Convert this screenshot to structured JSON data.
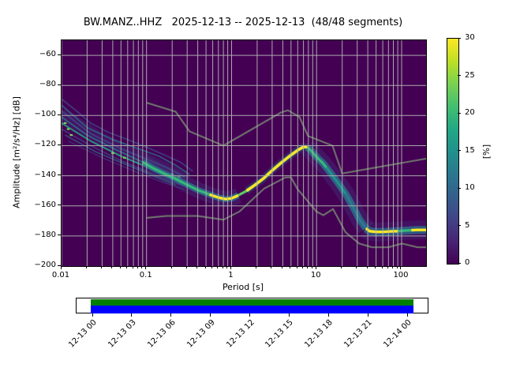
{
  "title": "BW.MANZ..HHZ   2025-12-13 -- 2025-12-13  (48/48 segments)",
  "axes": {
    "xlabel": "Period [s]",
    "ylabel": "Amplitude [m²/s⁴/Hz] [dB]",
    "x_ticks": {
      "labels": [
        "0.01",
        "0.1",
        "1",
        "10",
        "100"
      ],
      "values": [
        0.01,
        0.1,
        1,
        10,
        100
      ]
    },
    "y_ticks": {
      "labels": [
        "−60",
        "−80",
        "−100",
        "−120",
        "−140",
        "−160",
        "−180",
        "−200"
      ],
      "values": [
        -60,
        -80,
        -100,
        -120,
        -140,
        -160,
        -180,
        -200
      ]
    }
  },
  "colorbar": {
    "label": "[%]",
    "min": 0,
    "max": 30,
    "tick_labels": [
      "0",
      "5",
      "10",
      "15",
      "20",
      "25",
      "30"
    ],
    "tick_values": [
      0,
      5,
      10,
      15,
      20,
      25,
      30
    ],
    "colormap": "viridis",
    "stops": [
      "#440154",
      "#482475",
      "#414487",
      "#355f8d",
      "#2a788e",
      "#21918c",
      "#22a884",
      "#44bf70",
      "#7ad151",
      "#bddf26",
      "#fde725"
    ]
  },
  "timeline": {
    "tick_labels": [
      "12-13 00",
      "12-13 03",
      "12-13 06",
      "12-13 09",
      "12-13 12",
      "12-13 15",
      "12-13 18",
      "12-13 21",
      "12-14 00"
    ],
    "coverage_top_color": "#007f00",
    "coverage_bottom_color": "#0000ff"
  },
  "chart_data": {
    "type": "heatmap",
    "subtype": "probabilistic-power-spectral-density",
    "station": "BW.MANZ..HHZ",
    "date_range": "2025-12-13 -- 2025-12-13",
    "segments_used": 48,
    "segments_total": 48,
    "title": "BW.MANZ..HHZ   2025-12-13 -- 2025-12-13  (48/48 segments)",
    "xlabel": "Period [s]",
    "ylabel": "Amplitude [m²/s⁴/Hz] [dB]",
    "xscale": "log",
    "xlim": [
      0.01,
      194
    ],
    "ylim": [
      -200,
      -50
    ],
    "grid": true,
    "background_color": "#440154",
    "grid_color": "#b0b0b0",
    "noise_model_color": "#6b6b6b",
    "probability_colormap_range_percent": [
      0,
      30
    ],
    "ppsd_mode": [
      [
        0.09,
        -131
      ],
      [
        0.12,
        -135
      ],
      [
        0.16,
        -138.5
      ],
      [
        0.22,
        -142
      ],
      [
        0.3,
        -146
      ],
      [
        0.4,
        -149.5
      ],
      [
        0.55,
        -152.5
      ],
      [
        0.7,
        -154.5
      ],
      [
        0.85,
        -155.5
      ],
      [
        1.0,
        -155
      ],
      [
        1.2,
        -153
      ],
      [
        1.5,
        -150
      ],
      [
        1.9,
        -146
      ],
      [
        2.4,
        -141.5
      ],
      [
        3.0,
        -136.5
      ],
      [
        3.8,
        -131.5
      ],
      [
        4.8,
        -127
      ],
      [
        6.0,
        -123
      ],
      [
        7.0,
        -120.8
      ],
      [
        7.8,
        -121
      ],
      [
        8.5,
        -123
      ],
      [
        10,
        -127.5
      ],
      [
        12,
        -132
      ],
      [
        13,
        -134.5
      ],
      [
        15,
        -139
      ],
      [
        18,
        -145
      ],
      [
        22,
        -152
      ],
      [
        27,
        -161
      ],
      [
        32,
        -169
      ],
      [
        38,
        -175
      ],
      [
        42,
        -176.8
      ],
      [
        50,
        -177.3
      ],
      [
        60,
        -177.3
      ],
      [
        75,
        -177
      ],
      [
        90,
        -176.8
      ],
      [
        110,
        -176.4
      ],
      [
        130,
        -176.2
      ],
      [
        150,
        -176
      ],
      [
        194,
        -176
      ]
    ],
    "ridge_segments": [
      {
        "range": [
          0.09,
          0.55
        ],
        "color": "#35b779",
        "width": 3.2
      },
      {
        "range": [
          0.55,
          1.2
        ],
        "color": "#fde725",
        "width": 3.4
      },
      {
        "range": [
          1.2,
          1.5
        ],
        "color": "#5ec962",
        "width": 3.2
      },
      {
        "range": [
          1.5,
          7.8
        ],
        "color": "#fde725",
        "width": 3.4
      },
      {
        "range": [
          7.8,
          13
        ],
        "color": "#35b779",
        "width": 3.2
      },
      {
        "range": [
          13,
          22
        ],
        "color": "#21918c",
        "width": 3.2
      },
      {
        "range": [
          22,
          38
        ],
        "color": "#2a788e",
        "width": 3.2
      },
      {
        "range": [
          38,
          90
        ],
        "color": "#fde725",
        "width": 3.4
      },
      {
        "range": [
          90,
          130
        ],
        "color": "#35b779",
        "width": 3.2
      },
      {
        "range": [
          130,
          194
        ],
        "color": "#fde725",
        "width": 3.4
      }
    ],
    "glow_layers": [
      {
        "range": [
          0.05,
          1.45
        ],
        "color": "#414487",
        "width": 20,
        "opacity": 0.3
      },
      {
        "range": [
          0.09,
          1.45
        ],
        "color": "#2a788e",
        "width": 8,
        "opacity": 0.75
      },
      {
        "range": [
          1.5,
          7.8
        ],
        "color": "#31688e",
        "width": 10,
        "opacity": 0.25
      },
      {
        "range": [
          1.5,
          7.8
        ],
        "color": "#35b779",
        "width": 5.5,
        "opacity": 0.45
      },
      {
        "range": [
          7.8,
          40
        ],
        "color": "#414487",
        "width": 22,
        "opacity": 0.3
      },
      {
        "range": [
          7.8,
          40
        ],
        "color": "#2a788e",
        "width": 9,
        "opacity": 0.75
      },
      {
        "range": [
          38,
          194
        ],
        "color": "#414487",
        "width": 24,
        "opacity": 0.25
      },
      {
        "range": [
          38,
          194
        ],
        "color": "#2a788e",
        "width": 10,
        "opacity": 0.7
      }
    ],
    "fan_stripes": [
      {
        "points": [
          [
            0.01,
            -99
          ],
          [
            0.03,
            -116
          ],
          [
            0.08,
            -127
          ],
          [
            0.18,
            -136
          ],
          [
            0.3,
            -143
          ]
        ],
        "color": "#414487",
        "width": 16,
        "opacity": 0.3
      },
      {
        "points": [
          [
            0.01,
            -89
          ],
          [
            0.015,
            -97
          ],
          [
            0.022,
            -105
          ],
          [
            0.035,
            -111
          ],
          [
            0.06,
            -116
          ],
          [
            0.1,
            -121
          ],
          [
            0.16,
            -126
          ],
          [
            0.25,
            -131
          ],
          [
            0.35,
            -137
          ]
        ],
        "color": "#414487",
        "width": 1.8,
        "opacity": 0.8
      },
      {
        "points": [
          [
            0.01,
            -93
          ],
          [
            0.02,
            -108
          ],
          [
            0.04,
            -116
          ],
          [
            0.08,
            -122
          ],
          [
            0.14,
            -127
          ],
          [
            0.22,
            -133
          ],
          [
            0.32,
            -139
          ]
        ],
        "color": "#2a788e",
        "width": 1.8,
        "opacity": 0.7
      },
      {
        "points": [
          [
            0.01,
            -97
          ],
          [
            0.022,
            -112
          ],
          [
            0.05,
            -122
          ],
          [
            0.1,
            -129
          ],
          [
            0.18,
            -135
          ],
          [
            0.28,
            -141
          ]
        ],
        "color": "#414487",
        "width": 2,
        "opacity": 0.85
      },
      {
        "points": [
          [
            0.01,
            -101
          ],
          [
            0.02,
            -113
          ],
          [
            0.045,
            -123
          ],
          [
            0.09,
            -131
          ],
          [
            0.16,
            -138
          ],
          [
            0.24,
            -143
          ]
        ],
        "color": "#2a788e",
        "width": 1.8,
        "opacity": 0.8
      },
      {
        "points": [
          [
            0.01,
            -105
          ],
          [
            0.022,
            -117
          ],
          [
            0.05,
            -127
          ],
          [
            0.1,
            -134
          ],
          [
            0.17,
            -140
          ],
          [
            0.26,
            -145
          ]
        ],
        "color": "#22a884",
        "width": 2,
        "opacity": 0.85
      },
      {
        "points": [
          [
            0.01,
            -109
          ],
          [
            0.022,
            -120
          ],
          [
            0.05,
            -130
          ],
          [
            0.1,
            -137
          ],
          [
            0.2,
            -144
          ],
          [
            0.3,
            -147.5
          ]
        ],
        "color": "#414487",
        "width": 1.8,
        "opacity": 0.75
      },
      {
        "points": [
          [
            0.011,
            -113
          ],
          [
            0.025,
            -124
          ],
          [
            0.06,
            -133
          ],
          [
            0.12,
            -140
          ],
          [
            0.22,
            -146
          ]
        ],
        "color": "#2a788e",
        "width": 1.6,
        "opacity": 0.65
      },
      {
        "points": [
          [
            0.012,
            -117
          ],
          [
            0.03,
            -128
          ],
          [
            0.08,
            -138
          ],
          [
            0.15,
            -144
          ],
          [
            0.28,
            -149
          ]
        ],
        "color": "#414487",
        "width": 1.6,
        "opacity": 0.55
      }
    ],
    "bright_spots": [
      [
        0.011,
        -105
      ],
      [
        0.012,
        -109
      ],
      [
        0.013,
        -113
      ],
      [
        0.04,
        -125
      ],
      [
        0.055,
        -128
      ],
      [
        0.2,
        -139
      ],
      [
        0.24,
        -141
      ]
    ],
    "bright_spot_color": "#7ad151",
    "noise_models": {
      "nhnm": [
        [
          0.1,
          -91.5
        ],
        [
          0.22,
          -97.4
        ],
        [
          0.32,
          -110.5
        ],
        [
          0.8,
          -120.0
        ],
        [
          3.8,
          -98.0
        ],
        [
          4.6,
          -96.5
        ],
        [
          6.3,
          -101.0
        ],
        [
          7.9,
          -113.5
        ],
        [
          15.4,
          -120.0
        ],
        [
          20.0,
          -138.5
        ],
        [
          194,
          -128.6
        ]
      ],
      "nlnm": [
        [
          0.1,
          -168.0
        ],
        [
          0.17,
          -166.7
        ],
        [
          0.4,
          -166.7
        ],
        [
          0.8,
          -169.2
        ],
        [
          1.24,
          -163.7
        ],
        [
          2.4,
          -148.6
        ],
        [
          4.3,
          -141.1
        ],
        [
          5.0,
          -141.1
        ],
        [
          6.0,
          -149.0
        ],
        [
          10.0,
          -163.8
        ],
        [
          12.0,
          -166.2
        ],
        [
          15.6,
          -162.1
        ],
        [
          21.9,
          -177.5
        ],
        [
          31.6,
          -185.0
        ],
        [
          45.0,
          -187.5
        ],
        [
          70.0,
          -187.5
        ],
        [
          101.0,
          -185.0
        ],
        [
          154.0,
          -187.5
        ],
        [
          194,
          -187.5
        ]
      ]
    }
  }
}
